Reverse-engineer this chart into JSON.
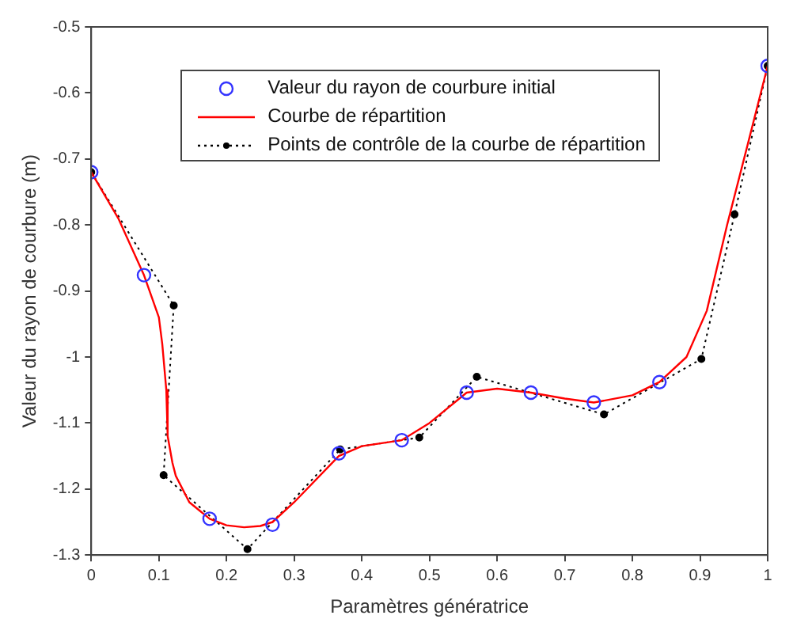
{
  "chart_data": {
    "type": "line",
    "xlabel": "Paramètres génératrice",
    "ylabel": "Valeur du rayon de courbure (m)",
    "xlim": [
      0,
      1
    ],
    "ylim": [
      -1.3,
      -0.5
    ],
    "xticks": [
      0,
      0.1,
      0.2,
      0.3,
      0.4,
      0.5,
      0.6,
      0.7,
      0.8,
      0.9,
      1
    ],
    "yticks": [
      -1.3,
      -1.2,
      -1.1,
      -1,
      -0.9,
      -0.8,
      -0.7,
      -0.6,
      -0.5
    ],
    "grid": false,
    "legend": "top",
    "series": [
      {
        "name": "Valeur du rayon de courbure initial",
        "type": "scatter",
        "color": "#3333ff",
        "marker": "circle",
        "x": [
          0,
          0.078,
          0.175,
          0.268,
          0.366,
          0.459,
          0.555,
          0.65,
          0.743,
          0.84,
          1
        ],
        "values": [
          -0.72,
          -0.876,
          -1.245,
          -1.254,
          -1.146,
          -1.126,
          -1.054,
          -1.054,
          -1.069,
          -1.038,
          -0.559
        ]
      },
      {
        "name": "Courbe de répartition",
        "type": "line",
        "color": "#ff0000",
        "marker": "none",
        "line_style": "solid",
        "x": [
          0,
          0.04,
          0.078,
          0.1,
          0.105,
          0.111,
          0.113,
          0.12,
          0.125,
          0.145,
          0.175,
          0.2,
          0.226,
          0.25,
          0.268,
          0.3,
          0.366,
          0.4,
          0.459,
          0.5,
          0.555,
          0.6,
          0.65,
          0.7,
          0.743,
          0.8,
          0.84,
          0.88,
          0.91,
          0.94,
          0.97,
          1
        ],
        "values": [
          -0.72,
          -0.79,
          -0.876,
          -0.94,
          -0.98,
          -1.05,
          -1.12,
          -1.16,
          -1.18,
          -1.22,
          -1.245,
          -1.255,
          -1.258,
          -1.256,
          -1.25,
          -1.22,
          -1.15,
          -1.135,
          -1.126,
          -1.1,
          -1.054,
          -1.048,
          -1.054,
          -1.063,
          -1.069,
          -1.058,
          -1.038,
          -1.0,
          -0.93,
          -0.8,
          -0.68,
          -0.559
        ]
      },
      {
        "name": "Points de contrôle de la courbe de répartition",
        "type": "line",
        "color": "#000000",
        "marker": "circle",
        "line_style": "dotted",
        "x": [
          0,
          0.122,
          0.107,
          0.231,
          0.368,
          0.485,
          0.57,
          0.758,
          0.902,
          0.951,
          1
        ],
        "values": [
          -0.72,
          -0.922,
          -1.179,
          -1.291,
          -1.14,
          -1.122,
          -1.03,
          -1.087,
          -1.003,
          -0.784,
          -0.559
        ]
      }
    ]
  }
}
